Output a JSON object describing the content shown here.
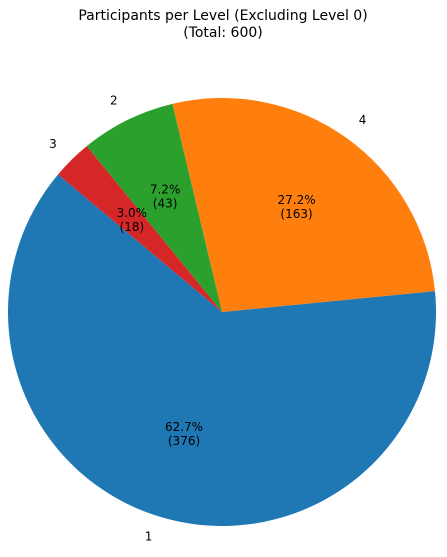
{
  "chart_data": {
    "type": "pie",
    "title": "Participants per Level (Excluding Level 0)",
    "subtitle": "(Total: 600)",
    "categories": [
      "1",
      "4",
      "2",
      "3"
    ],
    "values": [
      376,
      163,
      43,
      18
    ],
    "percent_labels": [
      "62.7%",
      "27.2%",
      "7.2%",
      "3.0%"
    ],
    "value_labels": [
      "(376)",
      "(163)",
      "(43)",
      "(18)"
    ],
    "colors": [
      "#1f77b4",
      "#ff7f0e",
      "#2ca02c",
      "#d62728"
    ]
  }
}
